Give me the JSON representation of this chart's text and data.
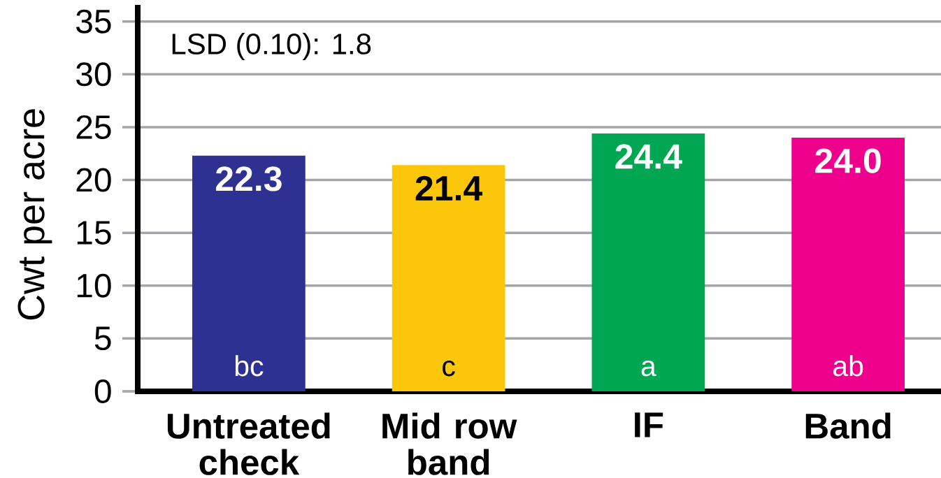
{
  "chart_data": {
    "type": "bar",
    "ylabel": "Cwt per acre",
    "categories": [
      "Untreated check",
      "Mid row band",
      "IF",
      "Band"
    ],
    "values": [
      22.3,
      21.4,
      24.4,
      24.0
    ],
    "value_labels": [
      "22.3",
      "21.4",
      "24.4",
      "24.0"
    ],
    "colors": [
      "#2e3192",
      "#fcc70a",
      "#00a651",
      "#ec008c"
    ],
    "ylim": [
      0,
      36.3
    ],
    "yticks": [
      0,
      5,
      10,
      15,
      20,
      25,
      30,
      35
    ],
    "grid": "y",
    "annotations": [
      "LSD (0.10): 1.8",
      "bc",
      "c",
      "a",
      "ab"
    ]
  }
}
